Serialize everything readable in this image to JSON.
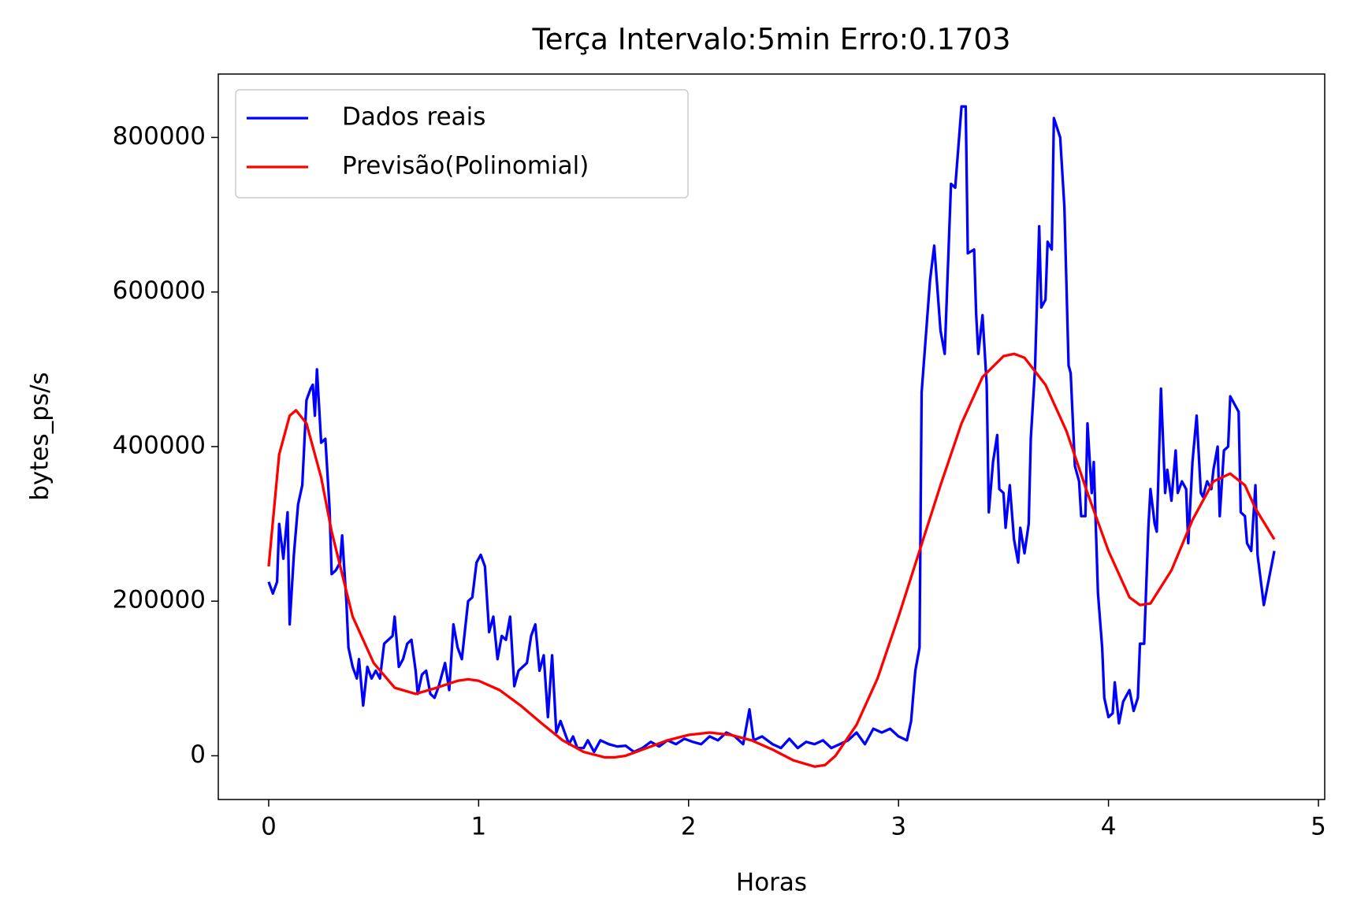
{
  "chart_data": {
    "type": "line",
    "title": "Terça Intervalo:5min Erro:0.1703",
    "xlabel": "Horas",
    "ylabel": "bytes_ps/s",
    "xlim": [
      -0.24,
      5.03
    ],
    "ylim": [
      -56600,
      882000
    ],
    "xticks": [
      0,
      1,
      2,
      3,
      4,
      5
    ],
    "yticks": [
      0,
      200000,
      400000,
      600000,
      800000
    ],
    "legend": "upper left",
    "grid": false,
    "series": [
      {
        "name": "Dados reais",
        "color": "#0000ff",
        "x": [
          0,
          0.02,
          0.04,
          0.05,
          0.07,
          0.09,
          0.1,
          0.12,
          0.14,
          0.16,
          0.18,
          0.2,
          0.21,
          0.22,
          0.23,
          0.25,
          0.27,
          0.29,
          0.3,
          0.32,
          0.34,
          0.35,
          0.37,
          0.38,
          0.4,
          0.42,
          0.43,
          0.45,
          0.47,
          0.49,
          0.51,
          0.53,
          0.55,
          0.57,
          0.59,
          0.6,
          0.62,
          0.64,
          0.66,
          0.68,
          0.7,
          0.71,
          0.73,
          0.75,
          0.77,
          0.79,
          0.81,
          0.84,
          0.86,
          0.88,
          0.9,
          0.92,
          0.95,
          0.97,
          0.99,
          1.01,
          1.03,
          1.05,
          1.07,
          1.09,
          1.11,
          1.13,
          1.15,
          1.17,
          1.19,
          1.23,
          1.25,
          1.27,
          1.29,
          1.31,
          1.33,
          1.35,
          1.37,
          1.39,
          1.41,
          1.43,
          1.45,
          1.47,
          1.5,
          1.52,
          1.55,
          1.58,
          1.62,
          1.66,
          1.7,
          1.74,
          1.78,
          1.82,
          1.86,
          1.9,
          1.94,
          1.98,
          2.02,
          2.06,
          2.1,
          2.14,
          2.18,
          2.22,
          2.26,
          2.29,
          2.31,
          2.35,
          2.4,
          2.44,
          2.48,
          2.52,
          2.56,
          2.6,
          2.64,
          2.68,
          2.72,
          2.76,
          2.8,
          2.84,
          2.88,
          2.92,
          2.96,
          3.0,
          3.04,
          3.06,
          3.08,
          3.1,
          3.11,
          3.15,
          3.17,
          3.2,
          3.22,
          3.25,
          3.27,
          3.3,
          3.32,
          3.33,
          3.36,
          3.37,
          3.38,
          3.4,
          3.42,
          3.43,
          3.45,
          3.47,
          3.48,
          3.5,
          3.51,
          3.53,
          3.55,
          3.57,
          3.58,
          3.6,
          3.62,
          3.63,
          3.65,
          3.67,
          3.68,
          3.7,
          3.71,
          3.73,
          3.74,
          3.77,
          3.79,
          3.81,
          3.82,
          3.84,
          3.86,
          3.87,
          3.89,
          3.9,
          3.92,
          3.93,
          3.95,
          3.97,
          3.98,
          4.0,
          4.02,
          4.03,
          4.05,
          4.07,
          4.09,
          4.1,
          4.12,
          4.14,
          4.15,
          4.17,
          4.19,
          4.2,
          4.22,
          4.23,
          4.25,
          4.27,
          4.28,
          4.3,
          4.32,
          4.33,
          4.35,
          4.37,
          4.38,
          4.4,
          4.42,
          4.44,
          4.45,
          4.47,
          4.49,
          4.5,
          4.52,
          4.53,
          4.55,
          4.57,
          4.58,
          4.6,
          4.62,
          4.63,
          4.65,
          4.66,
          4.68,
          4.7,
          4.71,
          4.74,
          4.79
        ],
        "values": [
          225000,
          210000,
          225000,
          300000,
          255000,
          315000,
          170000,
          260000,
          325000,
          350000,
          460000,
          475000,
          480000,
          440000,
          500000,
          405000,
          410000,
          320000,
          235000,
          240000,
          250000,
          285000,
          200000,
          140000,
          115000,
          100000,
          125000,
          65000,
          115000,
          100000,
          110000,
          100000,
          145000,
          150000,
          155000,
          180000,
          115000,
          125000,
          145000,
          150000,
          110000,
          80000,
          105000,
          110000,
          80000,
          75000,
          90000,
          120000,
          85000,
          170000,
          140000,
          125000,
          200000,
          205000,
          250000,
          260000,
          245000,
          160000,
          180000,
          125000,
          155000,
          150000,
          180000,
          90000,
          110000,
          120000,
          155000,
          170000,
          110000,
          130000,
          50000,
          130000,
          30000,
          45000,
          30000,
          15000,
          25000,
          10000,
          10000,
          20000,
          5000,
          20000,
          15000,
          12000,
          13000,
          5000,
          10000,
          18000,
          12000,
          20000,
          15000,
          22000,
          18000,
          15000,
          25000,
          20000,
          30000,
          25000,
          15000,
          60000,
          20000,
          25000,
          15000,
          10000,
          22000,
          10000,
          18000,
          15000,
          20000,
          10000,
          15000,
          20000,
          30000,
          15000,
          35000,
          30000,
          35000,
          25000,
          20000,
          45000,
          110000,
          140000,
          470000,
          615000,
          660000,
          550000,
          520000,
          740000,
          735000,
          840000,
          840000,
          650000,
          655000,
          570000,
          520000,
          570000,
          480000,
          315000,
          380000,
          415000,
          345000,
          340000,
          295000,
          350000,
          280000,
          250000,
          295000,
          262000,
          300000,
          410000,
          500000,
          685000,
          580000,
          590000,
          665000,
          655000,
          825000,
          800000,
          710000,
          505000,
          495000,
          375000,
          355000,
          310000,
          310000,
          430000,
          340000,
          380000,
          210000,
          140000,
          75000,
          50000,
          55000,
          95000,
          42000,
          70000,
          80000,
          85000,
          58000,
          75000,
          145000,
          145000,
          295000,
          345000,
          300000,
          290000,
          475000,
          340000,
          370000,
          330000,
          395000,
          340000,
          355000,
          345000,
          275000,
          380000,
          440000,
          340000,
          335000,
          355000,
          345000,
          370000,
          400000,
          310000,
          395000,
          400000,
          465000,
          455000,
          445000,
          315000,
          310000,
          275000,
          265000,
          350000,
          260000,
          195000,
          265000
        ]
      },
      {
        "name": "Previsão(Polinomial)",
        "color": "#ff0000",
        "x": [
          0,
          0.05,
          0.1,
          0.13,
          0.18,
          0.25,
          0.3,
          0.4,
          0.5,
          0.6,
          0.7,
          0.8,
          0.9,
          0.95,
          1.0,
          1.1,
          1.2,
          1.3,
          1.4,
          1.5,
          1.6,
          1.65,
          1.7,
          1.8,
          1.9,
          2.0,
          2.1,
          2.2,
          2.3,
          2.4,
          2.5,
          2.6,
          2.65,
          2.7,
          2.8,
          2.9,
          3.0,
          3.1,
          3.2,
          3.3,
          3.4,
          3.5,
          3.55,
          3.6,
          3.7,
          3.8,
          3.9,
          4.0,
          4.1,
          4.15,
          4.2,
          4.3,
          4.4,
          4.5,
          4.58,
          4.65,
          4.7,
          4.79
        ],
        "values": [
          245000,
          390000,
          440000,
          447000,
          430000,
          360000,
          290000,
          180000,
          120000,
          88000,
          80000,
          88000,
          97000,
          99000,
          97000,
          85000,
          65000,
          42000,
          20000,
          5000,
          -2000,
          -2000,
          0,
          10000,
          20000,
          27000,
          30000,
          27000,
          20000,
          8000,
          -6000,
          -14000,
          -12000,
          0,
          40000,
          100000,
          180000,
          265000,
          350000,
          430000,
          490000,
          517000,
          520000,
          515000,
          480000,
          420000,
          340000,
          265000,
          205000,
          195000,
          197000,
          240000,
          305000,
          355000,
          365000,
          350000,
          320000,
          280000
        ]
      }
    ]
  }
}
